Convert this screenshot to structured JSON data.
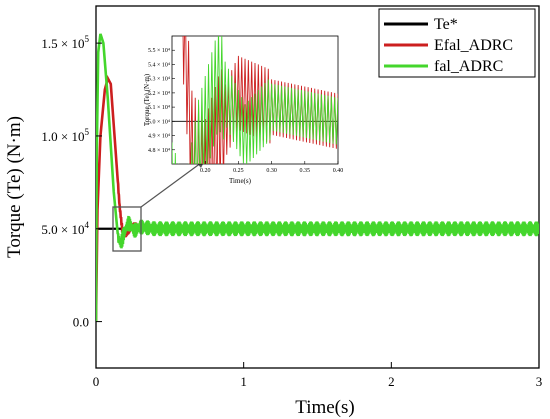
{
  "chart_data": {
    "type": "line",
    "xlabel": "Time(s)",
    "ylabel": "Torque (Te) (N·m)",
    "xlim": [
      0,
      3
    ],
    "ylim": [
      -25000,
      170000
    ],
    "x_ticks": [
      0,
      1,
      2,
      3
    ],
    "x_tick_labels": [
      "0",
      "1",
      "2",
      "3"
    ],
    "y_ticks": [
      0,
      50000,
      100000,
      150000
    ],
    "y_tick_labels": [
      "0.0",
      "5.0 × 10",
      "1.0 × 10",
      "1.5 × 10"
    ],
    "y_tick_exponents": [
      "",
      "4",
      "5",
      "5"
    ],
    "grid": false,
    "legend_position": "top-right",
    "series": [
      {
        "name": "Te*",
        "color": "#000000",
        "points": [
          [
            0,
            50000
          ],
          [
            3,
            50000
          ]
        ]
      },
      {
        "name": "Efal_ADRC",
        "color": "#cc1f1f",
        "points": [
          [
            0,
            0
          ],
          [
            0.01,
            60000
          ],
          [
            0.03,
            100000
          ],
          [
            0.06,
            125000
          ],
          [
            0.08,
            131000
          ],
          [
            0.1,
            128000
          ],
          [
            0.13,
            95000
          ],
          [
            0.16,
            62000
          ],
          [
            0.18,
            48000
          ],
          [
            0.2,
            46000
          ],
          [
            0.22,
            49000
          ],
          [
            0.25,
            52000
          ],
          [
            0.3,
            51000
          ],
          [
            0.4,
            50000
          ],
          [
            3,
            50000
          ]
        ],
        "oscillation": 1800
      },
      {
        "name": "fal_ADRC",
        "color": "#44d62c",
        "points": [
          [
            0,
            0
          ],
          [
            0.005,
            90000
          ],
          [
            0.015,
            145000
          ],
          [
            0.03,
            155000
          ],
          [
            0.05,
            150000
          ],
          [
            0.08,
            120000
          ],
          [
            0.12,
            70000
          ],
          [
            0.15,
            45000
          ],
          [
            0.17,
            42000
          ],
          [
            0.19,
            48000
          ],
          [
            0.22,
            53000
          ],
          [
            0.26,
            49000
          ],
          [
            0.3,
            51000
          ],
          [
            0.4,
            50000
          ],
          [
            3,
            50000
          ]
        ],
        "oscillation": 4000
      }
    ],
    "inset": {
      "xlabel": "Time(s)",
      "ylabel": "Torque (Te) (N·m)",
      "xlim": [
        0.15,
        0.4
      ],
      "ylim": [
        47000,
        56000
      ],
      "x_ticks": [
        0.2,
        0.25,
        0.3,
        0.35,
        0.4
      ],
      "x_tick_labels": [
        "0.20",
        "0.25",
        "0.30",
        "0.35",
        "0.40"
      ],
      "y_ticks": [
        48000,
        49000,
        50000,
        51000,
        52000,
        53000,
        54000,
        55000
      ],
      "y_tick_labels": [
        "4.8 × 10⁴",
        "4.9 × 10⁴",
        "5.0 × 10⁴",
        "5.1 × 10⁴",
        "5.2 × 10⁴",
        "5.3 × 10⁴",
        "5.4 × 10⁴",
        "5.5 × 10⁴"
      ]
    }
  }
}
